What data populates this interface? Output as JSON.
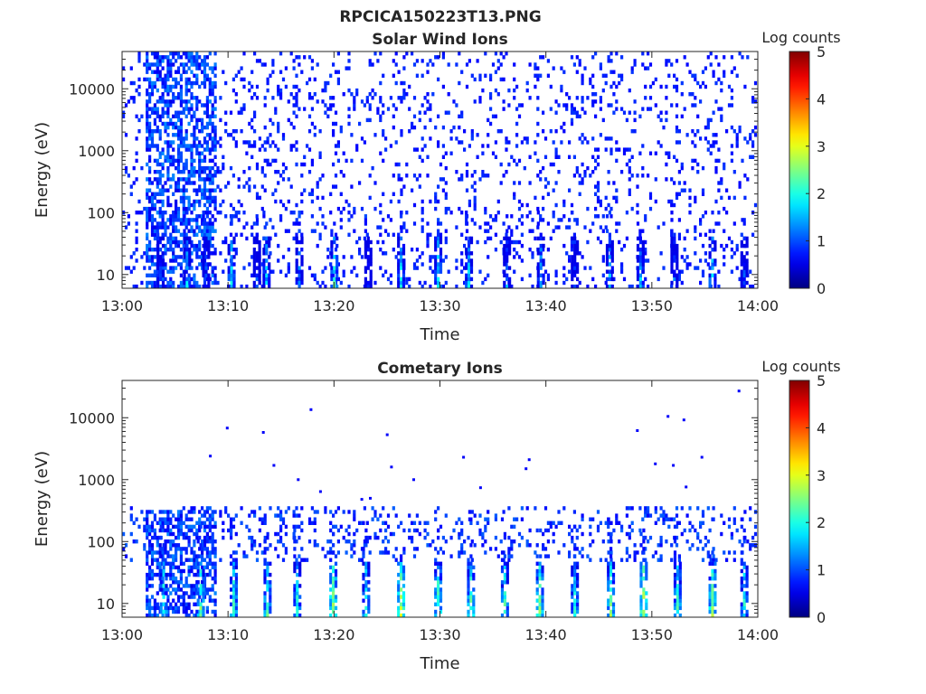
{
  "figure_title": "RPCICA150223T13.PNG",
  "chart_data": [
    {
      "type": "heatmap",
      "title": "Solar Wind Ions",
      "xlabel": "Time",
      "ylabel": "Energy (eV)",
      "x_ticks": [
        "13:00",
        "13:10",
        "13:20",
        "13:30",
        "13:40",
        "13:50",
        "14:00"
      ],
      "xlim_minutes": [
        0,
        60
      ],
      "y_ticks": [
        "10",
        "100",
        "1000",
        "10000"
      ],
      "y_scale": "log",
      "ylim": [
        6,
        40000
      ],
      "colorbar": {
        "label": "Log counts",
        "ticks": [
          "0",
          "1",
          "2",
          "3",
          "4",
          "5"
        ],
        "range": [
          0,
          5
        ],
        "colormap": "jet"
      },
      "background_sparse_level": 0.6,
      "dense_early_block": {
        "start_min": 2.2,
        "end_min": 8.8,
        "max_energy_eV": 40000,
        "level": 0.5
      },
      "low_energy_bursts": [
        {
          "t": 3.5,
          "level": 1.6
        },
        {
          "t": 6.0,
          "level": 2.0
        },
        {
          "t": 7.8,
          "level": 1.4
        },
        {
          "t": 10.2,
          "level": 2.2
        },
        {
          "t": 12.6,
          "level": 1.3
        },
        {
          "t": 13.5,
          "level": 2.1
        },
        {
          "t": 16.6,
          "level": 1.7
        },
        {
          "t": 19.9,
          "level": 2.4
        },
        {
          "t": 23.1,
          "level": 1.2
        },
        {
          "t": 26.2,
          "level": 2.2
        },
        {
          "t": 29.7,
          "level": 2.3
        },
        {
          "t": 32.6,
          "level": 2.1
        },
        {
          "t": 36.2,
          "level": 1.6
        },
        {
          "t": 39.4,
          "level": 2.0
        },
        {
          "t": 42.6,
          "level": 1.4
        },
        {
          "t": 45.9,
          "level": 1.9
        },
        {
          "t": 48.8,
          "level": 2.1
        },
        {
          "t": 52.0,
          "level": 1.5
        },
        {
          "t": 55.6,
          "level": 2.2
        },
        {
          "t": 58.6,
          "level": 1.4
        }
      ]
    },
    {
      "type": "heatmap",
      "title": "Cometary Ions",
      "xlabel": "Time",
      "ylabel": "Energy (eV)",
      "x_ticks": [
        "13:00",
        "13:10",
        "13:20",
        "13:30",
        "13:40",
        "13:50",
        "14:00"
      ],
      "xlim_minutes": [
        0,
        60
      ],
      "y_ticks": [
        "10",
        "100",
        "1000",
        "10000"
      ],
      "y_scale": "log",
      "ylim": [
        6,
        40000
      ],
      "colorbar": {
        "label": "Log counts",
        "ticks": [
          "0",
          "1",
          "2",
          "3",
          "4",
          "5"
        ],
        "range": [
          0,
          5
        ],
        "colormap": "jet"
      },
      "background_sparse_level": 0.6,
      "dense_early_block": {
        "start_min": 2.2,
        "end_min": 8.8,
        "max_energy_eV": 300,
        "level": 0.5
      },
      "low_energy_bursts": [
        {
          "t": 3.8,
          "level": 2.6
        },
        {
          "t": 7.3,
          "level": 2.8
        },
        {
          "t": 10.4,
          "level": 2.6
        },
        {
          "t": 13.6,
          "level": 2.7
        },
        {
          "t": 16.4,
          "level": 2.4
        },
        {
          "t": 19.8,
          "level": 3.1
        },
        {
          "t": 22.9,
          "level": 2.4
        },
        {
          "t": 26.2,
          "level": 3.2
        },
        {
          "t": 29.7,
          "level": 2.8
        },
        {
          "t": 32.8,
          "level": 2.8
        },
        {
          "t": 36.0,
          "level": 2.6
        },
        {
          "t": 39.3,
          "level": 2.9
        },
        {
          "t": 42.6,
          "level": 2.5
        },
        {
          "t": 46.0,
          "level": 2.8
        },
        {
          "t": 49.1,
          "level": 3.2
        },
        {
          "t": 52.3,
          "level": 2.6
        },
        {
          "t": 55.6,
          "level": 2.9
        },
        {
          "t": 58.6,
          "level": 2.4
        }
      ],
      "isolated_high_energy_points": [
        {
          "t": 8.2,
          "e": 2400
        },
        {
          "t": 9.8,
          "e": 6800
        },
        {
          "t": 13.2,
          "e": 5800
        },
        {
          "t": 14.2,
          "e": 1700
        },
        {
          "t": 16.5,
          "e": 1000
        },
        {
          "t": 17.7,
          "e": 13500
        },
        {
          "t": 18.6,
          "e": 640
        },
        {
          "t": 22.5,
          "e": 480
        },
        {
          "t": 23.3,
          "e": 500
        },
        {
          "t": 24.9,
          "e": 5300
        },
        {
          "t": 25.3,
          "e": 1600
        },
        {
          "t": 27.4,
          "e": 1000
        },
        {
          "t": 32.1,
          "e": 2300
        },
        {
          "t": 33.7,
          "e": 740
        },
        {
          "t": 38.0,
          "e": 1500
        },
        {
          "t": 38.3,
          "e": 2100
        },
        {
          "t": 48.5,
          "e": 6200
        },
        {
          "t": 50.2,
          "e": 1800
        },
        {
          "t": 51.4,
          "e": 10500
        },
        {
          "t": 51.9,
          "e": 1700
        },
        {
          "t": 52.9,
          "e": 9200
        },
        {
          "t": 53.1,
          "e": 760
        },
        {
          "t": 54.6,
          "e": 2300
        },
        {
          "t": 58.1,
          "e": 27000
        }
      ]
    }
  ]
}
